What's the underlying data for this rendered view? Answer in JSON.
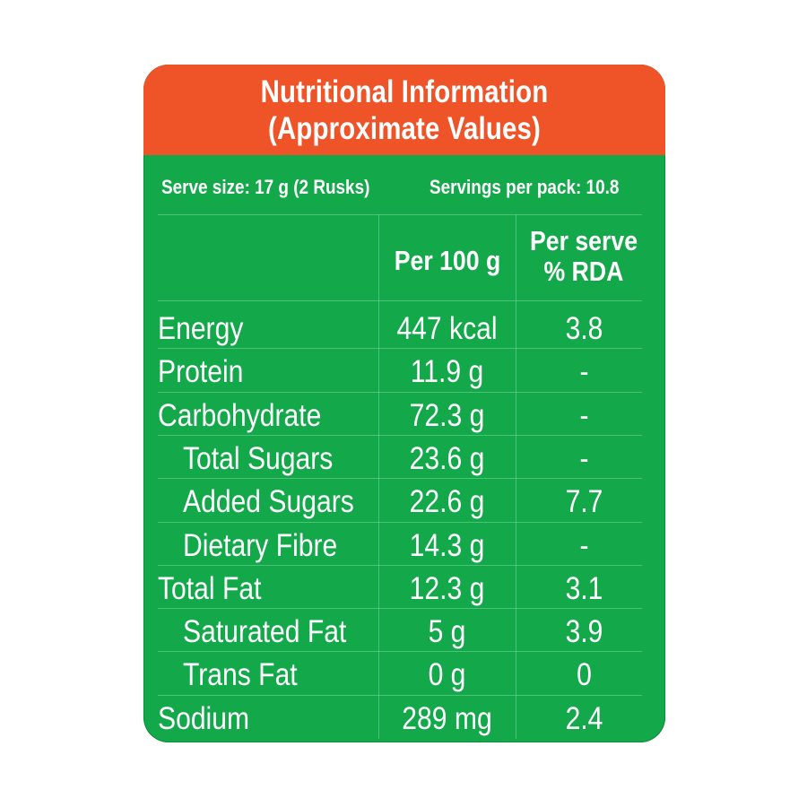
{
  "header": {
    "line1": "Nutritional Information",
    "line2": "(Approximate Values)"
  },
  "serving": {
    "serve_size": "Serve size: 17 g (2 Rusks)",
    "servings_per_pack": "Servings per pack: 10.8"
  },
  "columns": {
    "per_100g": "Per 100 g",
    "per_serve_line1": "Per serve",
    "per_serve_line2": "% RDA"
  },
  "rows": [
    {
      "name": "Energy",
      "per100": "447 kcal",
      "rda": "3.8",
      "indent": false
    },
    {
      "name": "Protein",
      "per100": "11.9 g",
      "rda": "-",
      "indent": false
    },
    {
      "name": "Carbohydrate",
      "per100": "72.3 g",
      "rda": "-",
      "indent": false
    },
    {
      "name": "Total Sugars",
      "per100": "23.6 g",
      "rda": "-",
      "indent": true
    },
    {
      "name": "Added Sugars",
      "per100": "22.6 g",
      "rda": "7.7",
      "indent": true
    },
    {
      "name": "Dietary Fibre",
      "per100": "14.3 g",
      "rda": "-",
      "indent": true
    },
    {
      "name": "Total Fat",
      "per100": "12.3 g",
      "rda": "3.1",
      "indent": false
    },
    {
      "name": "Saturated Fat",
      "per100": "5 g",
      "rda": "3.9",
      "indent": true
    },
    {
      "name": "Trans Fat",
      "per100": "0 g",
      "rda": "0",
      "indent": true
    },
    {
      "name": "Sodium",
      "per100": "289 mg",
      "rda": "2.4",
      "indent": false
    }
  ],
  "colors": {
    "header_bg": "#ef5328",
    "table_bg": "#13a84a",
    "text": "#ffffff"
  }
}
